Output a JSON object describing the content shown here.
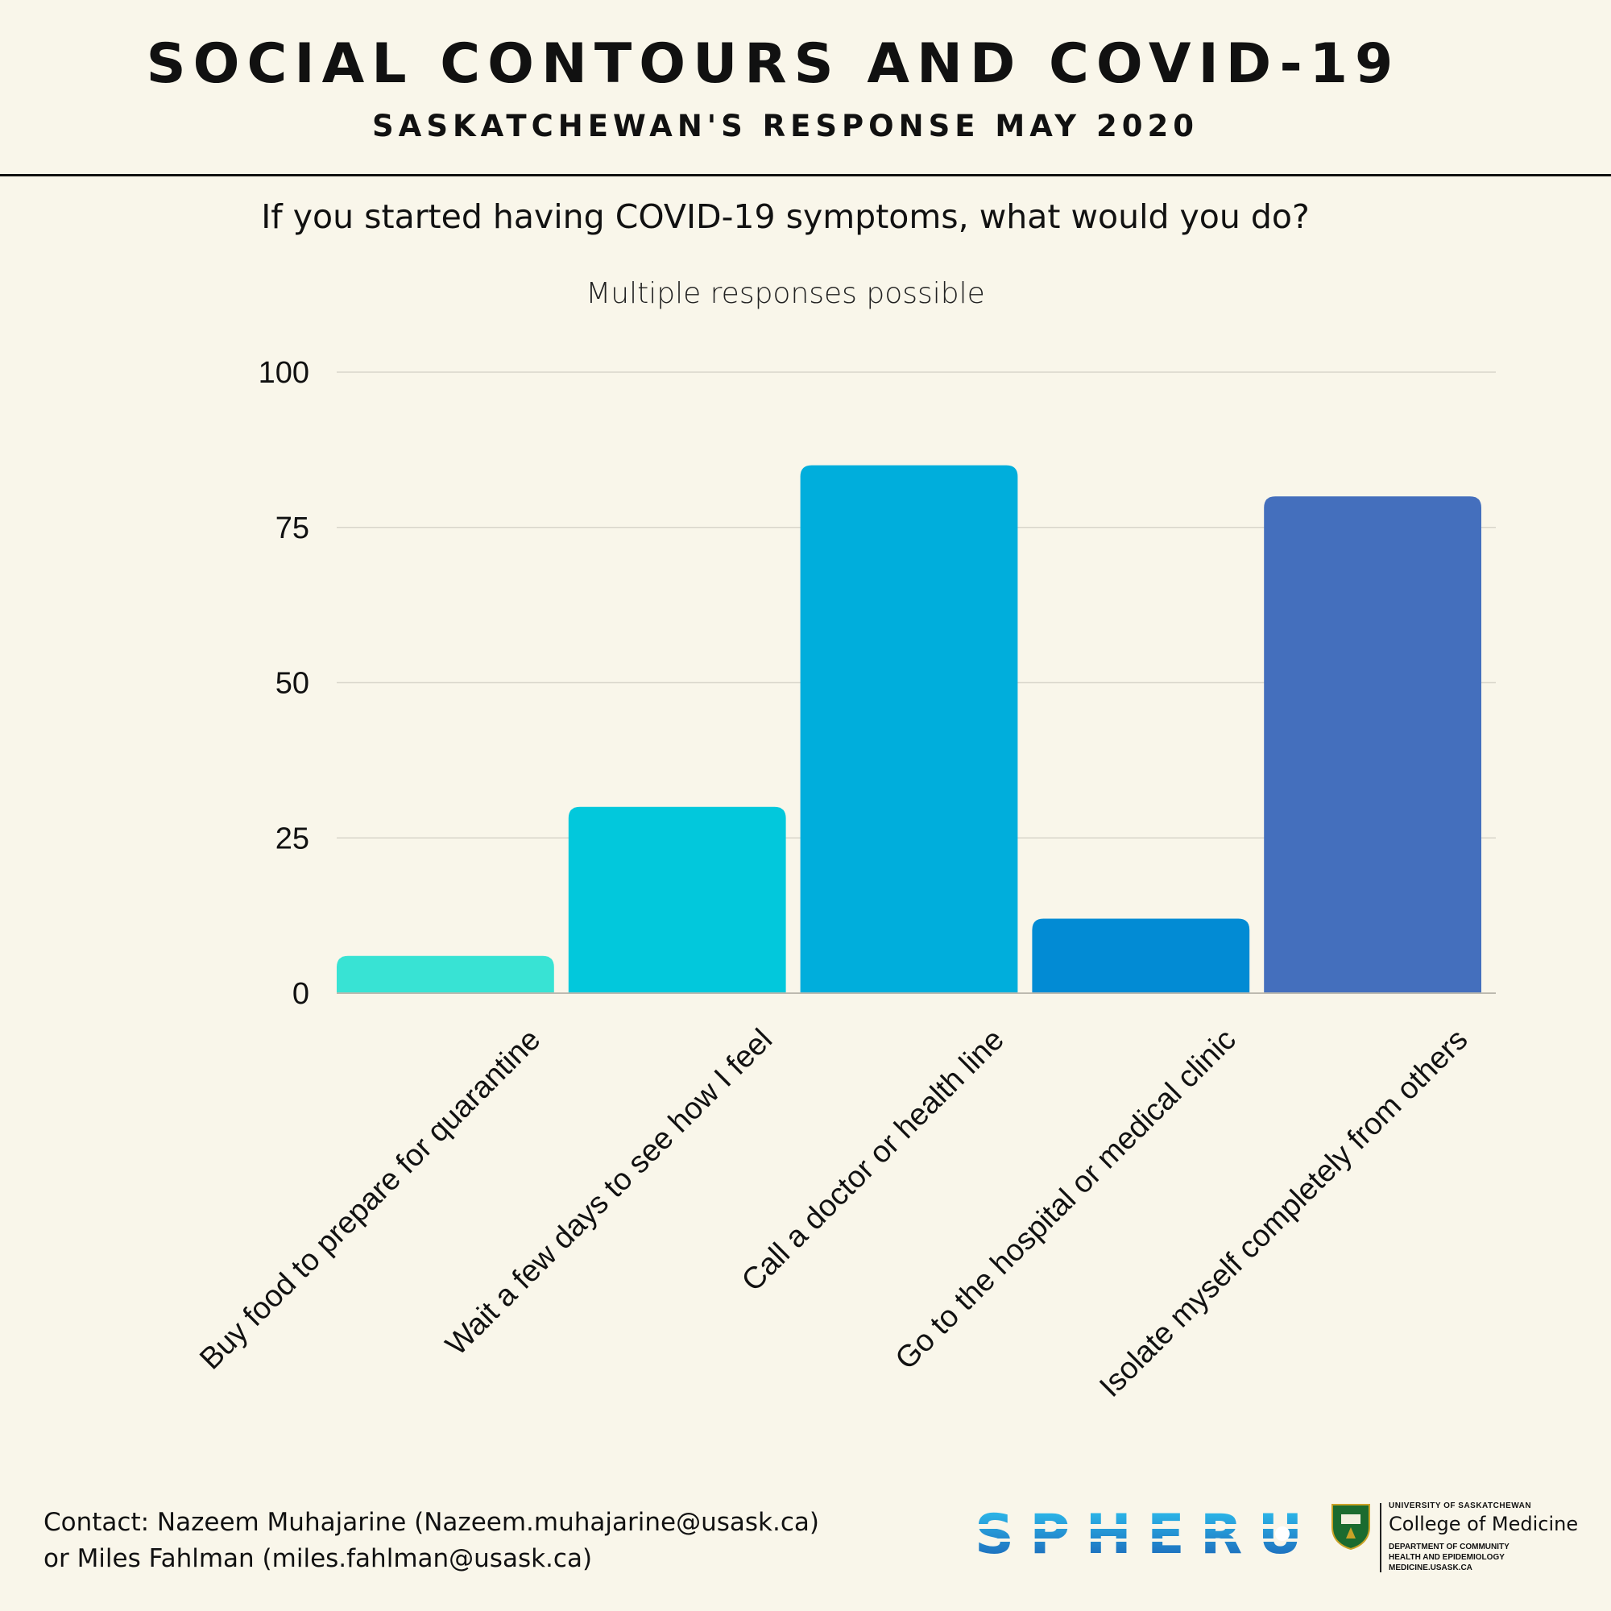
{
  "header": {
    "title": "SOCIAL CONTOURS AND COVID-19",
    "subtitle": "SASKATCHEWAN'S RESPONSE MAY 2020"
  },
  "chart_data": {
    "type": "bar",
    "title": "If you started having COVID-19 symptoms, what would you do?",
    "subtitle": "Multiple responses possible",
    "categories": [
      "Buy food to prepare for quarantine",
      "Wait a few days to see how I feel",
      "Call a doctor or health line",
      "Go to the hospital or medical clinic",
      "Isolate myself completely from others"
    ],
    "values": [
      6,
      30,
      85,
      12,
      80
    ],
    "colors": [
      "#38e3d4",
      "#02c8dc",
      "#00aedc",
      "#028bd4",
      "#446fbd"
    ],
    "ylim": [
      0,
      100
    ],
    "yticks": [
      0,
      25,
      50,
      75,
      100
    ],
    "grid": true,
    "xlabel": "",
    "ylabel": ""
  },
  "footer": {
    "contact_line1": "Contact: Nazeem Muhajarine (Nazeem.muhajarine@usask.ca)",
    "contact_line2": "or Miles Fahlman (miles.fahlman@usask.ca)",
    "spheru_logo": "SPHERU",
    "university": "UNIVERSITY OF SASKATCHEWAN",
    "college": "College of Medicine",
    "dept_line1": "DEPARTMENT OF COMMUNITY",
    "dept_line2": "HEALTH AND EPIDEMIOLOGY",
    "dept_line3": "MEDICINE.USASK.CA",
    "seal_icon": "university-crest-icon"
  }
}
